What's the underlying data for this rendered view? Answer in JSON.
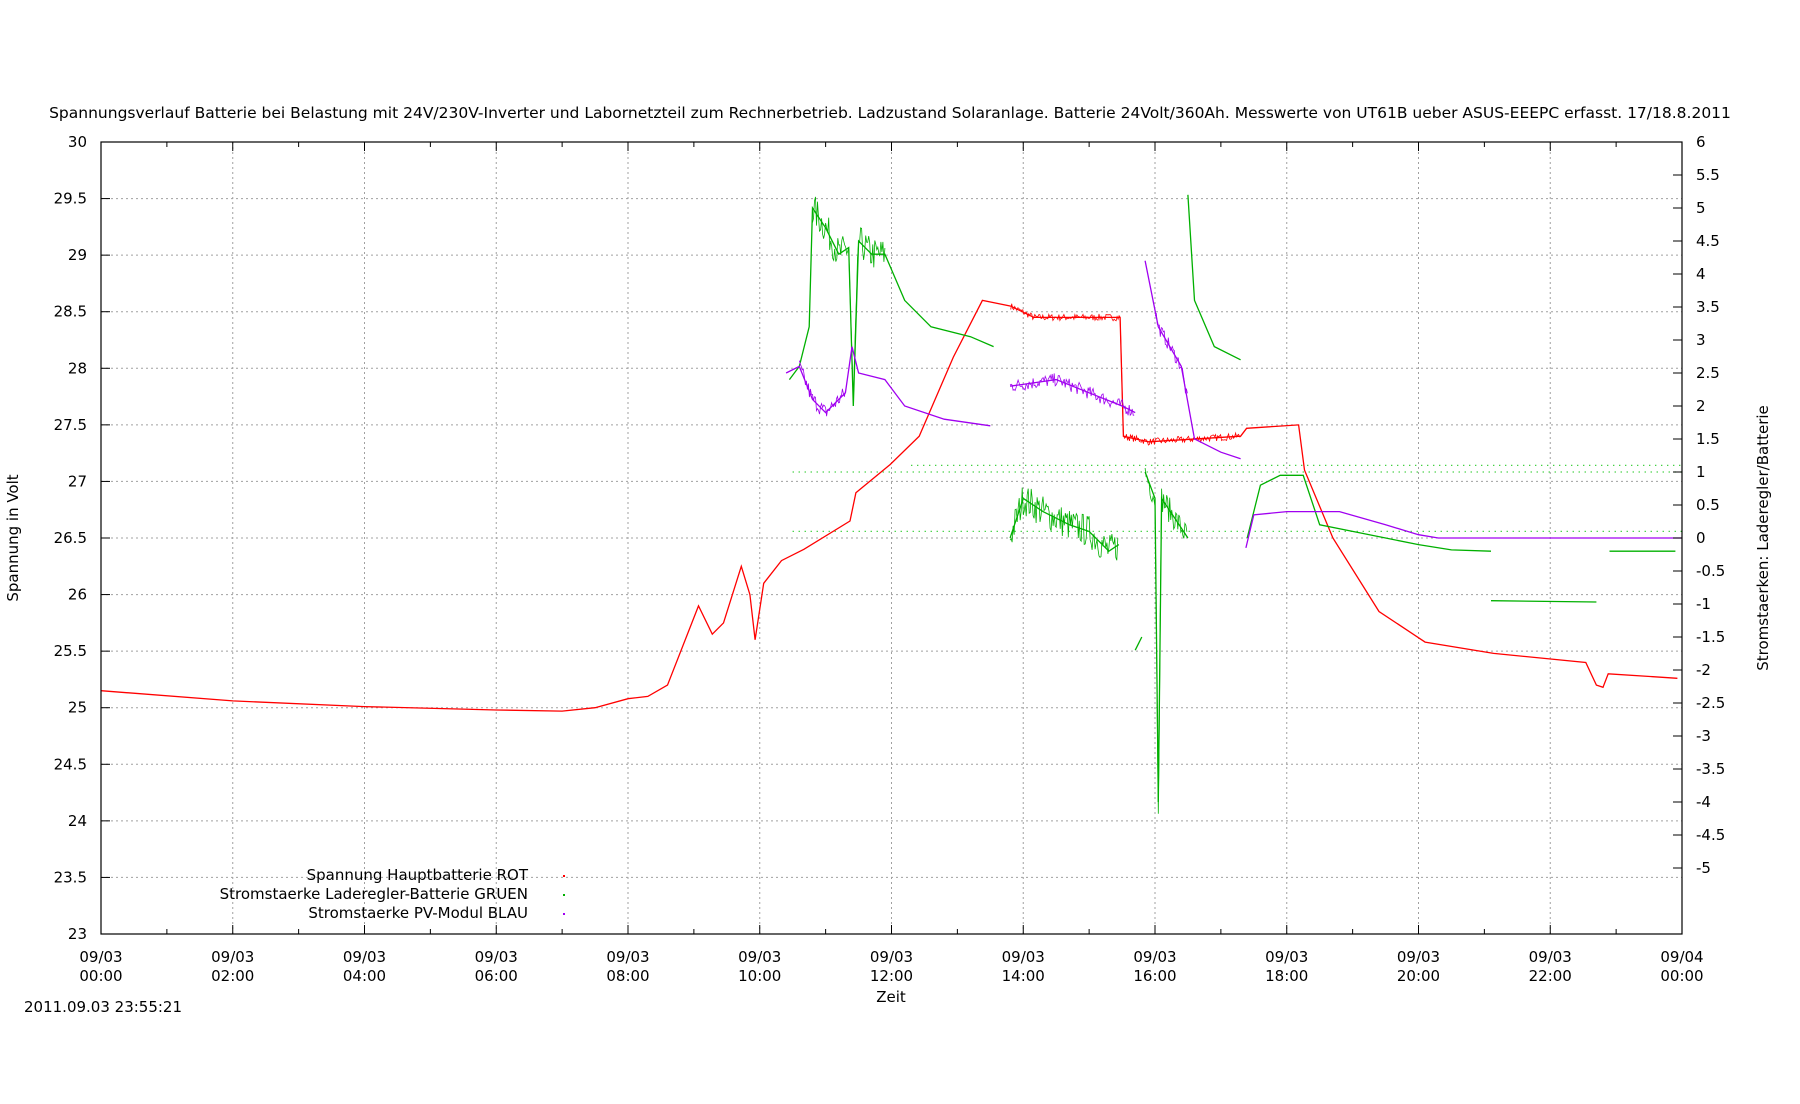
{
  "chart_data": {
    "type": "line",
    "title": "Spannungsverlauf Batterie bei Belastung mit 24V/230V-Inverter und Labornetzteil zum Rechnerbetrieb. Ladzustand Solaranlage. Batterie 24Volt/360Ah. Messwerte von UT61B ueber ASUS-EEEPC erfasst. 17/18.8.2011",
    "xlabel": "Zeit",
    "ylabel": "Spannung in Volt",
    "y2label": "Stromstaerken: Laderegler/Batterie",
    "timestamp": "2011.09.03 23:55:21",
    "xlim_hours": [
      0,
      24
    ],
    "ylim": [
      23,
      30
    ],
    "y2lim": [
      -6,
      6
    ],
    "grid": true,
    "legend_position": "bottom-left",
    "x_ticks": [
      {
        "h": 0,
        "date": "09/03",
        "time": "00:00"
      },
      {
        "h": 2,
        "date": "09/03",
        "time": "02:00"
      },
      {
        "h": 4,
        "date": "09/03",
        "time": "04:00"
      },
      {
        "h": 6,
        "date": "09/03",
        "time": "06:00"
      },
      {
        "h": 8,
        "date": "09/03",
        "time": "08:00"
      },
      {
        "h": 10,
        "date": "09/03",
        "time": "10:00"
      },
      {
        "h": 12,
        "date": "09/03",
        "time": "12:00"
      },
      {
        "h": 14,
        "date": "09/03",
        "time": "14:00"
      },
      {
        "h": 16,
        "date": "09/03",
        "time": "16:00"
      },
      {
        "h": 18,
        "date": "09/03",
        "time": "18:00"
      },
      {
        "h": 20,
        "date": "09/03",
        "time": "20:00"
      },
      {
        "h": 22,
        "date": "09/03",
        "time": "22:00"
      },
      {
        "h": 24,
        "date": "09/04",
        "time": "00:00"
      }
    ],
    "y_ticks": [
      "23",
      "23.5",
      "24",
      "24.5",
      "25",
      "25.5",
      "26",
      "26.5",
      "27",
      "27.5",
      "28",
      "28.5",
      "29",
      "29.5",
      "30"
    ],
    "y2_ticks": [
      "6",
      "5.5",
      "5",
      "4.5",
      "4",
      "3.5",
      "3",
      "2.5",
      "2",
      "1.5",
      "1",
      "0.5",
      "0",
      "-0.5",
      "-1",
      "-1.5",
      "-2",
      "-2.5",
      "-3",
      "-3.5",
      "-4",
      "-4.5",
      "-5"
    ],
    "series": [
      {
        "name": "Spannung Hauptbatterie ROT",
        "color": "#ff0000",
        "axis": "y",
        "points": [
          [
            0,
            25.15
          ],
          [
            2,
            25.06
          ],
          [
            4,
            25.01
          ],
          [
            6,
            24.98
          ],
          [
            7,
            24.97
          ],
          [
            7.5,
            25.0
          ],
          [
            8,
            25.08
          ],
          [
            8.3,
            25.1
          ],
          [
            8.6,
            25.2
          ],
          [
            9.07,
            25.9
          ],
          [
            9.28,
            25.65
          ],
          [
            9.45,
            25.75
          ],
          [
            9.72,
            26.25
          ],
          [
            9.85,
            26.0
          ],
          [
            9.93,
            25.6
          ],
          [
            10.06,
            26.1
          ],
          [
            10.33,
            26.3
          ],
          [
            10.67,
            26.4
          ],
          [
            11.37,
            26.65
          ],
          [
            11.46,
            26.9
          ],
          [
            11.98,
            27.15
          ],
          [
            12.42,
            27.4
          ],
          [
            12.94,
            28.1
          ],
          [
            13.38,
            28.6
          ],
          [
            13.81,
            28.55
          ],
          [
            14.16,
            28.45
          ],
          [
            15.47,
            28.45
          ],
          [
            15.52,
            27.4
          ],
          [
            15.9,
            27.35
          ],
          [
            17.3,
            27.4
          ],
          [
            17.39,
            27.47
          ],
          [
            18.18,
            27.5
          ],
          [
            18.27,
            27.1
          ],
          [
            18.7,
            26.5
          ],
          [
            19.4,
            25.85
          ],
          [
            20.1,
            25.58
          ],
          [
            21.14,
            25.48
          ],
          [
            22.54,
            25.4
          ],
          [
            22.7,
            25.2
          ],
          [
            22.8,
            25.18
          ],
          [
            22.88,
            25.3
          ],
          [
            23.93,
            25.26
          ]
        ],
        "noise": [
          [
            13.8,
            15.5,
            0.03
          ],
          [
            15.5,
            17.3,
            0.03
          ]
        ]
      },
      {
        "name": "Stromstaerke Laderegler-Batterie GRUEN",
        "color": "#00b000",
        "axis": "y2",
        "segments": [
          [
            [
              10.45,
              2.4
            ],
            [
              10.6,
              2.6
            ],
            [
              10.75,
              3.2
            ],
            [
              10.8,
              5.0
            ],
            [
              11.0,
              4.7
            ],
            [
              11.2,
              4.3
            ],
            [
              11.35,
              4.4
            ],
            [
              11.42,
              2.0
            ],
            [
              11.5,
              4.5
            ],
            [
              11.7,
              4.3
            ],
            [
              11.9,
              4.3
            ],
            [
              12.2,
              3.6
            ],
            [
              12.6,
              3.2
            ],
            [
              13.2,
              3.05
            ],
            [
              13.55,
              2.9
            ]
          ],
          [
            [
              13.8,
              0.0
            ],
            [
              14.0,
              0.6
            ],
            [
              14.3,
              0.4
            ],
            [
              14.7,
              0.2
            ],
            [
              15.0,
              0.1
            ],
            [
              15.3,
              -0.2
            ],
            [
              15.45,
              -0.1
            ]
          ],
          [
            [
              15.7,
              -1.7
            ],
            [
              15.8,
              -1.5
            ]
          ],
          [
            [
              15.85,
              1.0
            ],
            [
              16.0,
              0.6
            ],
            [
              16.05,
              -4.0
            ],
            [
              16.1,
              0.6
            ],
            [
              16.3,
              0.3
            ],
            [
              16.5,
              0.0
            ]
          ],
          [
            [
              16.5,
              5.2
            ],
            [
              16.6,
              3.6
            ],
            [
              16.9,
              2.9
            ],
            [
              17.3,
              2.7
            ]
          ],
          [
            [
              17.4,
              0.0
            ],
            [
              17.6,
              0.8
            ],
            [
              17.9,
              0.95
            ],
            [
              18.25,
              0.95
            ],
            [
              18.5,
              0.2
            ],
            [
              19.0,
              0.1
            ],
            [
              19.5,
              0.0
            ],
            [
              20.0,
              -0.1
            ],
            [
              20.5,
              -0.18
            ],
            [
              21.1,
              -0.2
            ]
          ],
          [
            [
              21.1,
              -0.95
            ],
            [
              22.7,
              -0.97
            ]
          ],
          [
            [
              22.9,
              -0.2
            ],
            [
              23.9,
              -0.2
            ]
          ]
        ],
        "noise": [
          [
            10.8,
            11.9,
            0.25
          ],
          [
            13.8,
            15.45,
            0.25
          ],
          [
            15.85,
            16.5,
            0.2
          ]
        ]
      },
      {
        "name": "Stromstaerke PV-Modul BLAU",
        "color": "#a000f0",
        "axis": "y2",
        "segments": [
          [
            [
              10.4,
              2.5
            ],
            [
              10.6,
              2.6
            ],
            [
              10.8,
              2.1
            ],
            [
              11.0,
              1.9
            ],
            [
              11.3,
              2.2
            ],
            [
              11.4,
              2.9
            ],
            [
              11.5,
              2.5
            ],
            [
              11.9,
              2.4
            ],
            [
              12.2,
              2.0
            ],
            [
              12.8,
              1.8
            ],
            [
              13.5,
              1.7
            ]
          ],
          [
            [
              13.8,
              2.3
            ],
            [
              14.5,
              2.4
            ],
            [
              15.0,
              2.2
            ],
            [
              15.5,
              2.0
            ],
            [
              15.7,
              1.9
            ]
          ],
          [
            [
              15.85,
              4.2
            ],
            [
              16.05,
              3.2
            ],
            [
              16.4,
              2.6
            ],
            [
              16.6,
              1.5
            ],
            [
              17.0,
              1.3
            ],
            [
              17.3,
              1.2
            ]
          ],
          [
            [
              17.38,
              -0.15
            ],
            [
              17.5,
              0.35
            ],
            [
              18.0,
              0.4
            ],
            [
              18.8,
              0.4
            ],
            [
              19.5,
              0.2
            ],
            [
              20.0,
              0.05
            ],
            [
              20.3,
              0.0
            ],
            [
              24,
              0.0
            ]
          ]
        ],
        "noise": [
          [
            10.6,
            11.3,
            0.12
          ],
          [
            13.8,
            15.7,
            0.1
          ],
          [
            16.0,
            16.5,
            0.1
          ]
        ]
      }
    ],
    "sparse_lines": [
      {
        "color": "#00c000",
        "axis": "y2",
        "value": 1.0,
        "from": 10.5,
        "to": 24
      },
      {
        "color": "#00c000",
        "axis": "y2",
        "value": 1.1,
        "from": 12.3,
        "to": 24
      },
      {
        "color": "#00c000",
        "axis": "y2",
        "value": 0.1,
        "from": 10.5,
        "to": 24
      }
    ]
  }
}
